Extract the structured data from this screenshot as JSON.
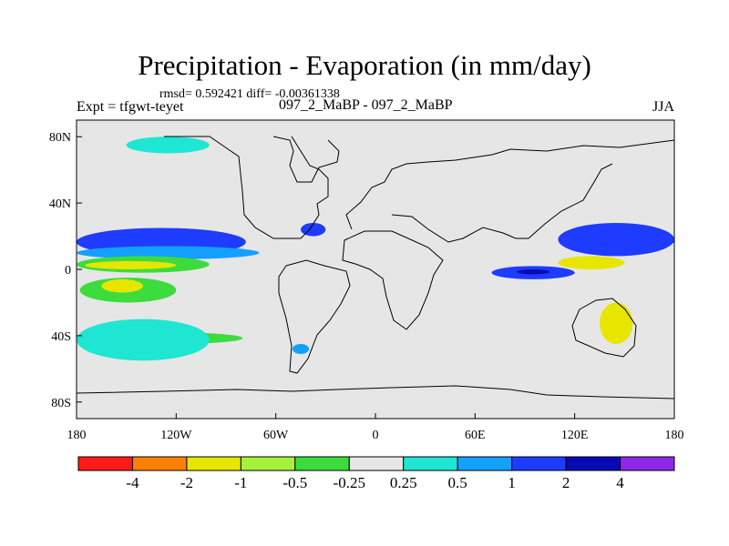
{
  "header": {
    "title": "Precipitation - Evaporation (in mm/day)",
    "stats": "rmsd= 0.592421  diff= -0.00361338",
    "experiment": "Expt = tfgwt-teyet",
    "subtitle": "097_2_MaBP - 097_2_MaBP",
    "season": "JJA"
  },
  "axes": {
    "lon_ticks": [
      "180",
      "120W",
      "60W",
      "0",
      "60E",
      "120E",
      "180"
    ],
    "lat_ticks": [
      "80N",
      "40N",
      "0",
      "40S",
      "80S"
    ],
    "lon_values": [
      -180,
      -120,
      -60,
      0,
      60,
      120,
      180
    ],
    "lat_values": [
      80,
      40,
      0,
      -40,
      -80
    ],
    "lon_range": [
      -180,
      180
    ],
    "lat_range": [
      -90,
      90
    ]
  },
  "legend": {
    "labels": [
      "-4",
      "-2",
      "-1",
      "-0.5",
      "-0.25",
      "0.25",
      "0.5",
      "1",
      "2",
      "4"
    ],
    "colors": [
      "#ff1a1a",
      "#ff8000",
      "#e6e600",
      "#a6f03c",
      "#3cdc3c",
      "#e6e6e6",
      "#1ee6d2",
      "#14a0ff",
      "#1e3cff",
      "#0a0ab4",
      "#8c28e6"
    ]
  },
  "chart_data": {
    "type": "heatmap",
    "title": "Precipitation - Evaporation (in mm/day)",
    "projection": "cylindrical-equidistant",
    "xlim": [
      -180,
      180
    ],
    "ylim": [
      -90,
      90
    ],
    "background_level": "-0.25 to 0.25",
    "contour_levels": [
      -4,
      -2,
      -1,
      -0.5,
      -0.25,
      0.25,
      0.5,
      1,
      2,
      4
    ],
    "anomaly_regions": [
      {
        "name": "north-pacific-itcz-core",
        "color": "#0a0ab4",
        "lon": [
          -180,
          -85
        ],
        "lat": [
          12,
          22
        ]
      },
      {
        "name": "north-pacific-band",
        "color": "#1e3cff",
        "lon": [
          -180,
          -78
        ],
        "lat": [
          8,
          25
        ]
      },
      {
        "name": "pacific-wet-south",
        "color": "#14a0ff",
        "lon": [
          -180,
          -70
        ],
        "lat": [
          6,
          14
        ]
      },
      {
        "name": "pacific-dry-band",
        "color": "#3cdc3c",
        "lon": [
          -180,
          -100
        ],
        "lat": [
          -2,
          8
        ]
      },
      {
        "name": "pacific-dry-core",
        "color": "#e6e600",
        "lon": [
          -175,
          -120
        ],
        "lat": [
          0,
          5
        ]
      },
      {
        "name": "south-pacific-dry",
        "color": "#3cdc3c",
        "lon": [
          -178,
          -120
        ],
        "lat": [
          -20,
          -5
        ]
      },
      {
        "name": "south-pacific-dry-core",
        "color": "#e6e600",
        "lon": [
          -165,
          -140
        ],
        "lat": [
          -14,
          -6
        ]
      },
      {
        "name": "atlantic-wet",
        "color": "#1e3cff",
        "lon": [
          -45,
          -30
        ],
        "lat": [
          20,
          28
        ]
      },
      {
        "name": "indian-wet-band",
        "color": "#1e3cff",
        "lon": [
          70,
          120
        ],
        "lat": [
          -6,
          2
        ]
      },
      {
        "name": "indian-wet-core",
        "color": "#0a0ab4",
        "lon": [
          85,
          105
        ],
        "lat": [
          -3,
          0
        ]
      },
      {
        "name": "west-pacific-wet",
        "color": "#0a0ab4",
        "lon": [
          120,
          180
        ],
        "lat": [
          12,
          22
        ]
      },
      {
        "name": "west-pacific-wet-outer",
        "color": "#1e3cff",
        "lon": [
          110,
          180
        ],
        "lat": [
          8,
          28
        ]
      },
      {
        "name": "west-pacific-dry",
        "color": "#e6e600",
        "lon": [
          110,
          150
        ],
        "lat": [
          0,
          8
        ]
      },
      {
        "name": "australia-dry",
        "color": "#e6e600",
        "lon": [
          135,
          155
        ],
        "lat": [
          -45,
          -20
        ]
      },
      {
        "name": "southern-ocean-dry",
        "color": "#3cdc3c",
        "lon": [
          -165,
          -80
        ],
        "lat": [
          -45,
          -38
        ]
      },
      {
        "name": "southern-ocean-wet",
        "color": "#1ee6d2",
        "lon": [
          -180,
          -100
        ],
        "lat": [
          -55,
          -30
        ]
      },
      {
        "name": "arctic-wet",
        "color": "#1ee6d2",
        "lon": [
          -150,
          -100
        ],
        "lat": [
          70,
          80
        ]
      },
      {
        "name": "south-atlantic-wet",
        "color": "#14a0ff",
        "lon": [
          -50,
          -40
        ],
        "lat": [
          -51,
          -45
        ]
      }
    ]
  }
}
